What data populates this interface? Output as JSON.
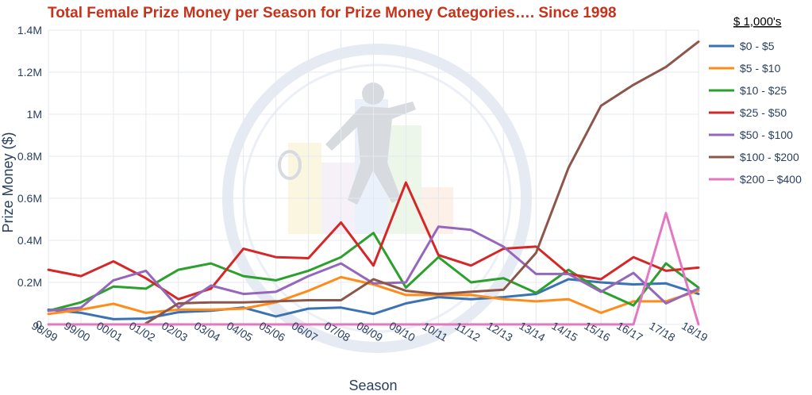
{
  "chart_data": {
    "type": "line",
    "title": "Total Female Prize Money per Season for Prize Money Categories…. Since 1998",
    "xlabel": "Season",
    "ylabel": "Prize Money ($)",
    "legend_title": "$ 1,000's",
    "legend_position": "right",
    "grid": true,
    "ylim": [
      0,
      1400000
    ],
    "yticks": [
      0,
      200000,
      400000,
      600000,
      800000,
      1000000,
      1200000,
      1400000
    ],
    "ytick_labels": [
      "0",
      "0.2M",
      "0.4M",
      "0.6M",
      "0.8M",
      "1M",
      "1.2M",
      "1.4M"
    ],
    "categories": [
      "98/99",
      "99/00",
      "00/01",
      "01/02",
      "02/03",
      "03/04",
      "04/05",
      "05/06",
      "06/07",
      "07/08",
      "08/09",
      "09/10",
      "10/11",
      "11/12",
      "12/13",
      "13/14",
      "14/15",
      "15/16",
      "16/17",
      "17/18",
      "18/19"
    ],
    "series": [
      {
        "name": "$0 - $5",
        "color": "#3a72b4",
        "values": [
          70000,
          55000,
          25000,
          28000,
          58000,
          65000,
          80000,
          38000,
          75000,
          80000,
          50000,
          100000,
          130000,
          120000,
          130000,
          145000,
          215000,
          200000,
          190000,
          195000,
          145000
        ]
      },
      {
        "name": "$5 - $10",
        "color": "#ff8c1a",
        "values": [
          50000,
          70000,
          98000,
          55000,
          70000,
          70000,
          75000,
          105000,
          160000,
          225000,
          190000,
          140000,
          140000,
          140000,
          120000,
          110000,
          120000,
          55000,
          110000,
          110000,
          160000
        ]
      },
      {
        "name": "$10 - $25",
        "color": "#2ca02c",
        "values": [
          65000,
          105000,
          180000,
          170000,
          260000,
          290000,
          230000,
          210000,
          255000,
          320000,
          435000,
          175000,
          320000,
          200000,
          220000,
          150000,
          260000,
          160000,
          90000,
          290000,
          175000
        ]
      },
      {
        "name": "$25 - $50",
        "color": "#d62728",
        "values": [
          260000,
          230000,
          300000,
          220000,
          120000,
          170000,
          360000,
          320000,
          315000,
          485000,
          280000,
          675000,
          330000,
          280000,
          360000,
          370000,
          240000,
          215000,
          320000,
          255000,
          270000
        ]
      },
      {
        "name": "$50 - $100",
        "color": "#9467bd",
        "values": [
          65000,
          80000,
          210000,
          255000,
          80000,
          185000,
          145000,
          155000,
          230000,
          290000,
          195000,
          200000,
          465000,
          450000,
          370000,
          240000,
          240000,
          155000,
          245000,
          100000,
          170000
        ]
      },
      {
        "name": "$100 - $200",
        "color": "#8c564b",
        "values": [
          null,
          null,
          null,
          5000,
          100000,
          105000,
          105000,
          110000,
          115000,
          115000,
          215000,
          160000,
          145000,
          155000,
          165000,
          340000,
          745000,
          1040000,
          1140000,
          1225000,
          1345000
        ]
      },
      {
        "name": "$200 – $400",
        "color": "#e377c2",
        "values": [
          0,
          0,
          0,
          0,
          0,
          0,
          0,
          0,
          0,
          0,
          0,
          0,
          0,
          0,
          0,
          0,
          0,
          0,
          0,
          530000,
          0
        ]
      }
    ]
  }
}
